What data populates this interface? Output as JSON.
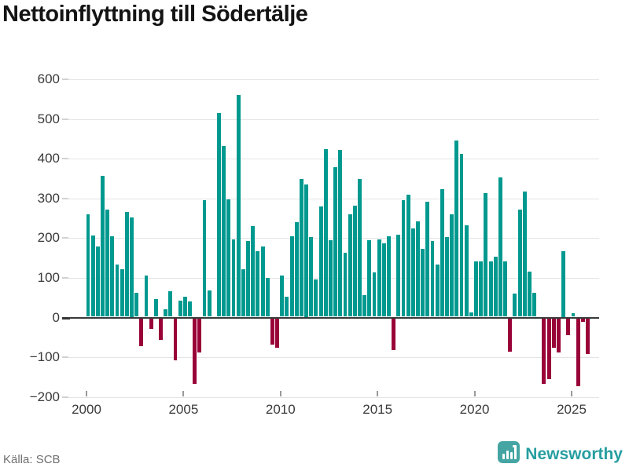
{
  "title": "Nettoinflyttning till Södertälje",
  "source": "Källa: SCB",
  "branding": {
    "name": "Newsworthy",
    "icon": "newsworthy-pin-chart-icon"
  },
  "colors": {
    "positive": "#00998f",
    "negative": "#990338",
    "grid": "#e4e4e4",
    "zero_line": "#3a3a3a",
    "axis_text": "#3a3a3a",
    "source_text": "#6f6f6f",
    "brand": "#279ea0"
  },
  "chart_data": {
    "type": "bar",
    "title": "Nettoinflyttning till Södertälje",
    "xlabel": "",
    "ylabel": "",
    "ylim": [
      -200,
      600
    ],
    "grid": true,
    "legend_position": "none",
    "yticks": [
      600,
      500,
      400,
      300,
      200,
      100,
      0,
      -100,
      -200
    ],
    "xticks": [
      {
        "label": "2000",
        "quarter_index": 0
      },
      {
        "label": "2005",
        "quarter_index": 20
      },
      {
        "label": "2010",
        "quarter_index": 40
      },
      {
        "label": "2015",
        "quarter_index": 60
      },
      {
        "label": "2020",
        "quarter_index": 80
      },
      {
        "label": "2025",
        "quarter_index": 100
      }
    ],
    "x_start": "2000 Q1",
    "x_end": "2025 Q4",
    "frequency": "quarterly",
    "values": [
      258,
      205,
      177,
      354,
      269,
      203,
      132,
      120,
      263,
      250,
      60,
      -70,
      103,
      -27,
      44,
      -54,
      18,
      65,
      -105,
      40,
      50,
      38,
      -165,
      -85,
      293,
      67,
      0,
      512,
      430,
      296,
      195,
      558,
      120,
      190,
      229,
      165,
      177,
      97,
      -67,
      -74,
      104,
      50,
      202,
      239,
      347,
      334,
      200,
      94,
      278,
      421,
      192,
      376,
      419,
      161,
      257,
      279,
      347,
      55,
      192,
      111,
      195,
      184,
      203,
      -81,
      207,
      294,
      308,
      223,
      240,
      171,
      290,
      191,
      132,
      321,
      201,
      258,
      443,
      410,
      230,
      10,
      140,
      140,
      312,
      140,
      152,
      351,
      140,
      -84,
      58,
      270,
      316,
      114,
      60,
      0,
      -165,
      -154,
      -75,
      -85,
      166,
      -43,
      9,
      -170,
      -8,
      -90
    ]
  }
}
